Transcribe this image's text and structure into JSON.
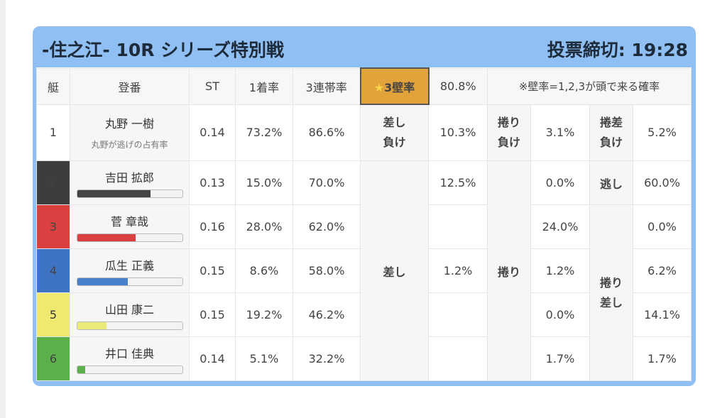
{
  "header": {
    "title": "-住之江- 10R シリーズ特別戦",
    "deadline": "投票締切: 19:28"
  },
  "columns": {
    "lane": "艇",
    "reg": "登番",
    "st": "ST",
    "rate1": "1着率",
    "rate3": "3連帯率",
    "wall_star": "★",
    "wall_label": "3壁率",
    "wall_value": "80.8%",
    "note": "※壁率=1,2,3が頭で来る確率"
  },
  "row1": {
    "lane": "1",
    "name": "丸野 一樹",
    "sub": "丸野が逃げの占有率",
    "st": "0.14",
    "r1": "73.2%",
    "r3": "86.6%",
    "k1_label": "差し\n負け",
    "k1_value": "10.3%",
    "k2_label": "捲り\n負け",
    "k2_value": "3.1%",
    "k3_label": "捲差\n負け",
    "k3_value": "5.2%"
  },
  "merged": {
    "sashi": "差し",
    "makuri": "捲り",
    "nige": "逃し",
    "makurisashi": "捲り\n差し"
  },
  "racers": [
    {
      "lane": "2",
      "name": "吉田 拡郎",
      "st": "0.13",
      "r1": "15.0%",
      "r3": "70.0%",
      "sashi": "12.5%",
      "makuri": "0.0%",
      "last": "60.0%",
      "bar": 0.7,
      "color": "#3d3d3d",
      "bar_color": "#444444"
    },
    {
      "lane": "3",
      "name": "菅 章哉",
      "st": "0.16",
      "r1": "28.0%",
      "r3": "62.0%",
      "sashi": "",
      "makuri": "24.0%",
      "last": "0.0%",
      "bar": 0.56,
      "color": "#d9403f",
      "bar_color": "#d9403f"
    },
    {
      "lane": "4",
      "name": "瓜生 正義",
      "st": "0.15",
      "r1": "8.6%",
      "r3": "58.0%",
      "sashi": "1.2%",
      "makuri": "1.2%",
      "last": "6.2%",
      "bar": 0.48,
      "color": "#3e73c4",
      "bar_color": "#4a7fcc"
    },
    {
      "lane": "5",
      "name": "山田 康二",
      "st": "0.15",
      "r1": "19.2%",
      "r3": "46.2%",
      "sashi": "",
      "makuri": "0.0%",
      "last": "14.1%",
      "bar": 0.28,
      "color": "#efe96f",
      "bar_color": "#eaea78"
    },
    {
      "lane": "6",
      "name": "井口 佳典",
      "st": "0.14",
      "r1": "5.1%",
      "r3": "32.2%",
      "sashi": "",
      "makuri": "1.7%",
      "last": "1.7%",
      "bar": 0.08,
      "color": "#5bb04a",
      "bar_color": "#5bb04a"
    }
  ]
}
